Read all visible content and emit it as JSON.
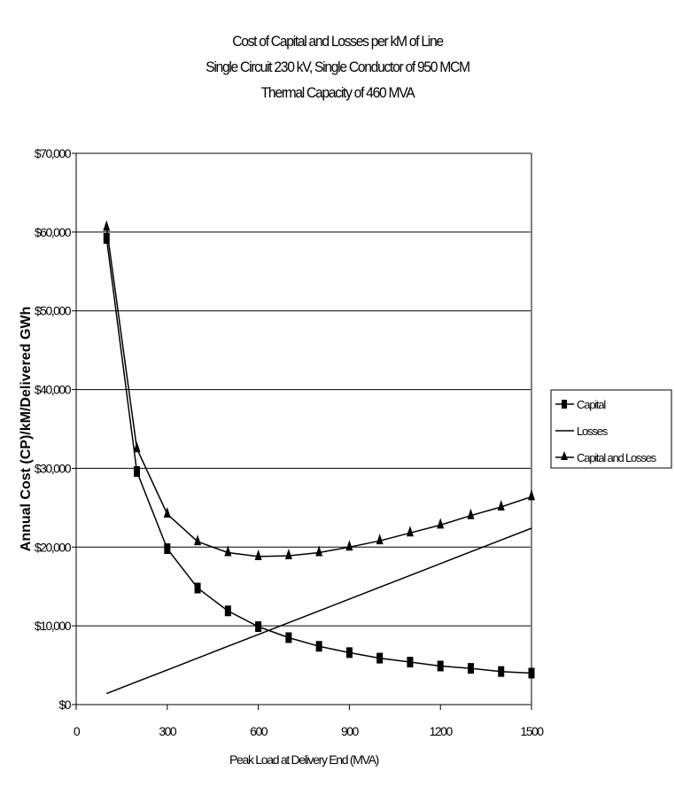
{
  "chart_data": {
    "type": "line",
    "title": "Cost of Capital and Losses per kM of Line",
    "subtitle_lines": [
      "Single Circuit 230 kV, Single Conductor of 950 MCM",
      "Thermal Capacity of 460 MVA"
    ],
    "xlabel": "Peak Load at Delivery End (MVA)",
    "ylabel": "Annual Cost (CP)/kM/Delivered GWh",
    "xlim": [
      0,
      1500
    ],
    "ylim": [
      0,
      70000
    ],
    "x_ticks": [
      0,
      300,
      600,
      900,
      1200,
      1500
    ],
    "x_tick_labels": [
      "0",
      "300",
      "600",
      "900",
      "1200",
      "1500"
    ],
    "y_ticks": [
      0,
      10000,
      20000,
      30000,
      40000,
      50000,
      60000,
      70000
    ],
    "y_tick_labels": [
      "$0",
      "$10,000",
      "$20,000",
      "$30,000",
      "$40,000",
      "$50,000",
      "$60,000",
      "$70,000"
    ],
    "grid": "horizontal",
    "legend_position": "right",
    "x": [
      100,
      200,
      300,
      400,
      500,
      600,
      700,
      800,
      900,
      1000,
      1100,
      1200,
      1300,
      1400,
      1500
    ],
    "series": [
      {
        "name": "Capital",
        "marker": "square",
        "values": [
          59200,
          29600,
          19800,
          14800,
          11900,
          9900,
          8500,
          7400,
          6600,
          5900,
          5400,
          4900,
          4600,
          4200,
          4000
        ]
      },
      {
        "name": "Losses",
        "marker": "none",
        "values": [
          1400,
          2900,
          4400,
          5900,
          7400,
          8900,
          10400,
          11900,
          13400,
          14900,
          16400,
          17900,
          19400,
          20900,
          22400
        ]
      },
      {
        "name": "Capital and Losses",
        "marker": "triangle",
        "values": [
          60600,
          32500,
          24200,
          20700,
          19300,
          18800,
          18900,
          19300,
          20000,
          20800,
          21800,
          22800,
          24000,
          25100,
          26400
        ]
      }
    ]
  }
}
